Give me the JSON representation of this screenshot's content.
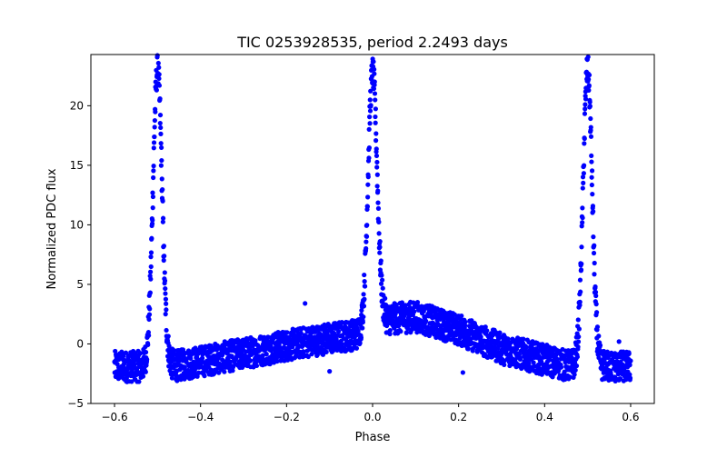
{
  "chart_data": {
    "type": "scatter",
    "title": "TIC 0253928535, period 2.2493 days",
    "xlabel": "Phase",
    "ylabel": "Normalized PDC flux",
    "xlim": [
      -0.655,
      0.655
    ],
    "ylim": [
      -5.0,
      24.3
    ],
    "xticks": [
      -0.6,
      -0.4,
      -0.2,
      0.0,
      0.2,
      0.4,
      0.6
    ],
    "xtick_labels": [
      "−0.6",
      "−0.4",
      "−0.2",
      "0.0",
      "0.2",
      "0.4",
      "0.6"
    ],
    "yticks": [
      -5,
      0,
      5,
      10,
      15,
      20
    ],
    "ytick_labels": [
      "−5",
      "0",
      "5",
      "10",
      "15",
      "20"
    ],
    "grid": false,
    "legend": "none",
    "marker_color": "#0000ff",
    "peaks": [
      {
        "phase": -0.5,
        "flux": 23.0
      },
      {
        "phase": 0.0,
        "flux": 22.8
      },
      {
        "phase": 0.5,
        "flux": 23.0
      }
    ],
    "baseline_trend": [
      {
        "phase": -0.6,
        "flux": -1.9
      },
      {
        "phase": -0.55,
        "flux": -1.9
      },
      {
        "phase": -0.45,
        "flux": -1.8
      },
      {
        "phase": -0.3,
        "flux": -0.8
      },
      {
        "phase": -0.15,
        "flux": 0.2
      },
      {
        "phase": -0.02,
        "flux": 0.9
      },
      {
        "phase": 0.02,
        "flux": 2.0
      },
      {
        "phase": 0.1,
        "flux": 2.3
      },
      {
        "phase": 0.2,
        "flux": 1.2
      },
      {
        "phase": 0.3,
        "flux": -0.4
      },
      {
        "phase": 0.45,
        "flux": -1.8
      },
      {
        "phase": 0.55,
        "flux": -1.9
      },
      {
        "phase": 0.6,
        "flux": -1.9
      }
    ],
    "outliers": [
      {
        "phase": -0.157,
        "flux": 3.4
      },
      {
        "phase": -0.1,
        "flux": -2.3
      },
      {
        "phase": 0.21,
        "flux": -2.4
      },
      {
        "phase": 0.573,
        "flux": 0.2
      }
    ]
  }
}
